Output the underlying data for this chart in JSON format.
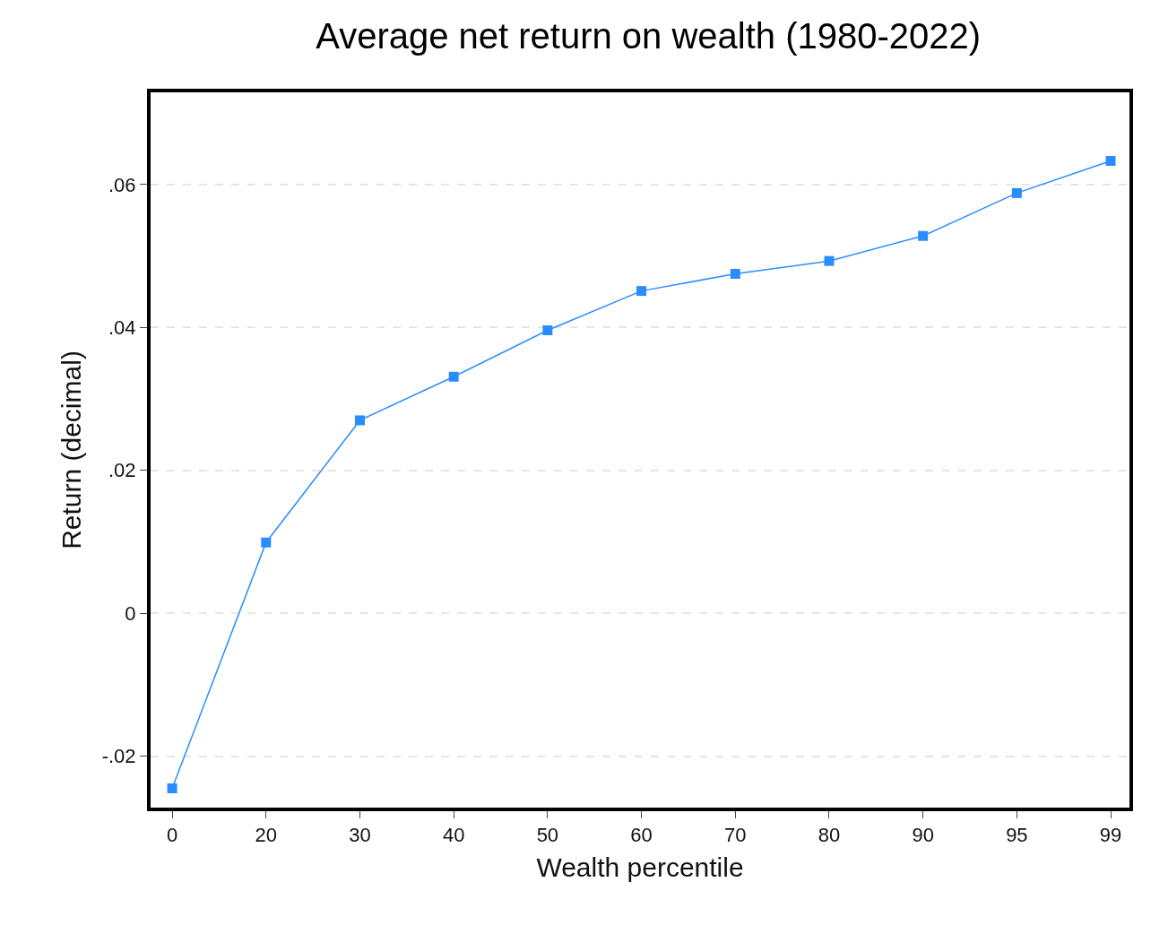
{
  "chart_data": {
    "type": "line",
    "title": "Average net return on wealth (1980-2022)",
    "xlabel": "Wealth percentile",
    "ylabel": "Return (decimal)",
    "categories": [
      "0",
      "20",
      "30",
      "40",
      "50",
      "60",
      "70",
      "80",
      "90",
      "95",
      "99"
    ],
    "series": [
      {
        "color": "#2b8cff",
        "values": [
          -0.0245,
          0.0099,
          0.027,
          0.0331,
          0.0396,
          0.0451,
          0.0475,
          0.0493,
          0.0528,
          0.0588,
          0.0633
        ]
      }
    ],
    "ylim": [
      -0.0272,
      0.0729
    ],
    "yticks": [
      {
        "value": -0.02,
        "label": "-.02"
      },
      0,
      {
        "value": 0.02,
        "label": ".02"
      },
      {
        "value": 0.04,
        "label": ".04"
      },
      {
        "value": 0.06,
        "label": ".06"
      }
    ],
    "grid": "y",
    "marker": "square",
    "line_style": "solid"
  }
}
